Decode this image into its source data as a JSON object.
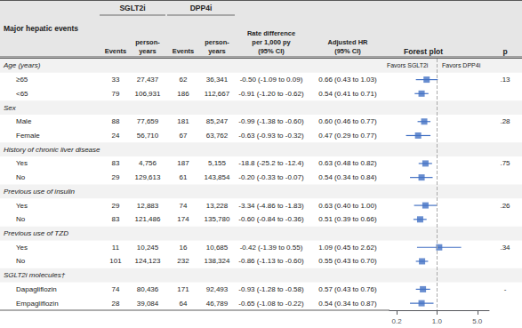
{
  "chart_data": {
    "type": "forest",
    "title": "Major hepatic events",
    "arms": [
      "SGLT2i",
      "DPP4i"
    ],
    "columns": [
      "Events",
      "person-\nyears",
      "Events",
      "person-\nyears",
      "Rate difference\nper 1,000 py\n(95% CI)",
      "Adjusted HR\n(95% CI)"
    ],
    "forest_title": "Forest plot",
    "p_title": "p",
    "favors": [
      "Favors SGLT2i",
      "Favors DPP4i"
    ],
    "groups": [
      {
        "label": "Age (years)",
        "rows": [
          {
            "name": "≥65",
            "sglt2i_events": "33",
            "sglt2i_py": "27,437",
            "dpp4i_events": "62",
            "dpp4i_py": "36,341",
            "rate": "-0.50 (-1.09 to 0.09)",
            "hr_label": "0.66 (0.43 to 1.03)",
            "hr": 0.66,
            "ci_lo": 0.43,
            "ci_hi": 1.03,
            "p": ".13"
          },
          {
            "name": "<65",
            "sglt2i_events": "79",
            "sglt2i_py": "106,931",
            "dpp4i_events": "186",
            "dpp4i_py": "112,667",
            "rate": "-0.91 (-1.20 to -0.62)",
            "hr_label": "0.54 (0.41 to 0.71)",
            "hr": 0.54,
            "ci_lo": 0.41,
            "ci_hi": 0.71
          }
        ]
      },
      {
        "label": "Sex",
        "rows": [
          {
            "name": "Male",
            "sglt2i_events": "88",
            "sglt2i_py": "77,659",
            "dpp4i_events": "181",
            "dpp4i_py": "85,247",
            "rate": "-0.99 (-1.38 to -0.60)",
            "hr_label": "0.60 (0.46 to 0.77)",
            "hr": 0.6,
            "ci_lo": 0.46,
            "ci_hi": 0.77,
            "p": ".28"
          },
          {
            "name": "Female",
            "sglt2i_events": "24",
            "sglt2i_py": "56,710",
            "dpp4i_events": "67",
            "dpp4i_py": "63,762",
            "rate": "-0.63 (-0.93 to -0.32)",
            "hr_label": "0.47 (0.29 to 0.77)",
            "hr": 0.47,
            "ci_lo": 0.29,
            "ci_hi": 0.77
          }
        ]
      },
      {
        "label": "History of chronic liver disease",
        "rows": [
          {
            "name": "Yes",
            "sglt2i_events": "83",
            "sglt2i_py": "4,756",
            "dpp4i_events": "187",
            "dpp4i_py": "5,155",
            "rate": "-18.8 (-25.2 to -12.4)",
            "hr_label": "0.63 (0.48 to 0.82)",
            "hr": 0.63,
            "ci_lo": 0.48,
            "ci_hi": 0.82,
            "p": ".75"
          },
          {
            "name": "No",
            "sglt2i_events": "29",
            "sglt2i_py": "129,613",
            "dpp4i_events": "61",
            "dpp4i_py": "143,854",
            "rate": "-0.20 (-0.33 to -0.07)",
            "hr_label": "0.54 (0.34 to 0.84)",
            "hr": 0.54,
            "ci_lo": 0.34,
            "ci_hi": 0.84
          }
        ]
      },
      {
        "label": "Previous use of insulin",
        "rows": [
          {
            "name": "Yes",
            "sglt2i_events": "29",
            "sglt2i_py": "12,883",
            "dpp4i_events": "74",
            "dpp4i_py": "13,228",
            "rate": "-3.34 (-4.86 to -1.83)",
            "hr_label": "0.63 (0.40 to 1.00)",
            "hr": 0.63,
            "ci_lo": 0.4,
            "ci_hi": 1.0,
            "p": ".26"
          },
          {
            "name": "No",
            "sglt2i_events": "83",
            "sglt2i_py": "121,486",
            "dpp4i_events": "174",
            "dpp4i_py": "135,780",
            "rate": "-0.60 (-0.84 to -0.36)",
            "hr_label": "0.51 (0.39 to 0.66)",
            "hr": 0.51,
            "ci_lo": 0.39,
            "ci_hi": 0.66
          }
        ]
      },
      {
        "label": "Previous use of TZD",
        "rows": [
          {
            "name": "Yes",
            "sglt2i_events": "11",
            "sglt2i_py": "10,245",
            "dpp4i_events": "16",
            "dpp4i_py": "10,685",
            "rate": "-0.42 (-1.39 to 0.55)",
            "hr_label": "1.09 (0.45 to 2.62)",
            "hr": 1.09,
            "ci_lo": 0.45,
            "ci_hi": 2.62,
            "p": ".34"
          },
          {
            "name": "No",
            "sglt2i_events": "101",
            "sglt2i_py": "124,123",
            "dpp4i_events": "232",
            "dpp4i_py": "138,324",
            "rate": "-0.86 (-1.13 to -0.60)",
            "hr_label": "0.55 (0.43 to 0.70)",
            "hr": 0.55,
            "ci_lo": 0.43,
            "ci_hi": 0.7
          }
        ]
      },
      {
        "label": "SGLT2i molecules†",
        "rows": [
          {
            "name": "Dapagliflozin",
            "sglt2i_events": "74",
            "sglt2i_py": "80,436",
            "dpp4i_events": "171",
            "dpp4i_py": "92,493",
            "rate": "-0.93 (-1.28 to -0.58)",
            "hr_label": "0.57 (0.43 to 0.76)",
            "hr": 0.57,
            "ci_lo": 0.43,
            "ci_hi": 0.76,
            "p": "-"
          },
          {
            "name": "Empagliflozin",
            "sglt2i_events": "28",
            "sglt2i_py": "39,084",
            "dpp4i_events": "64",
            "dpp4i_py": "46,789",
            "rate": "-0.65 (-1.08 to -0.22)",
            "hr_label": "0.54 (0.34 to 0.87)",
            "hr": 0.54,
            "ci_lo": 0.34,
            "ci_hi": 0.87
          }
        ]
      }
    ],
    "log": "x",
    "xlim": [
      0.15,
      8.0
    ],
    "xticks": [
      0.2,
      {
        "value": 1.0,
        "label": "1.0"
      },
      {
        "value": 5.0,
        "label": "5.0"
      }
    ],
    "reference_line": 1.0,
    "color": "#4472C4",
    "grid": false
  }
}
